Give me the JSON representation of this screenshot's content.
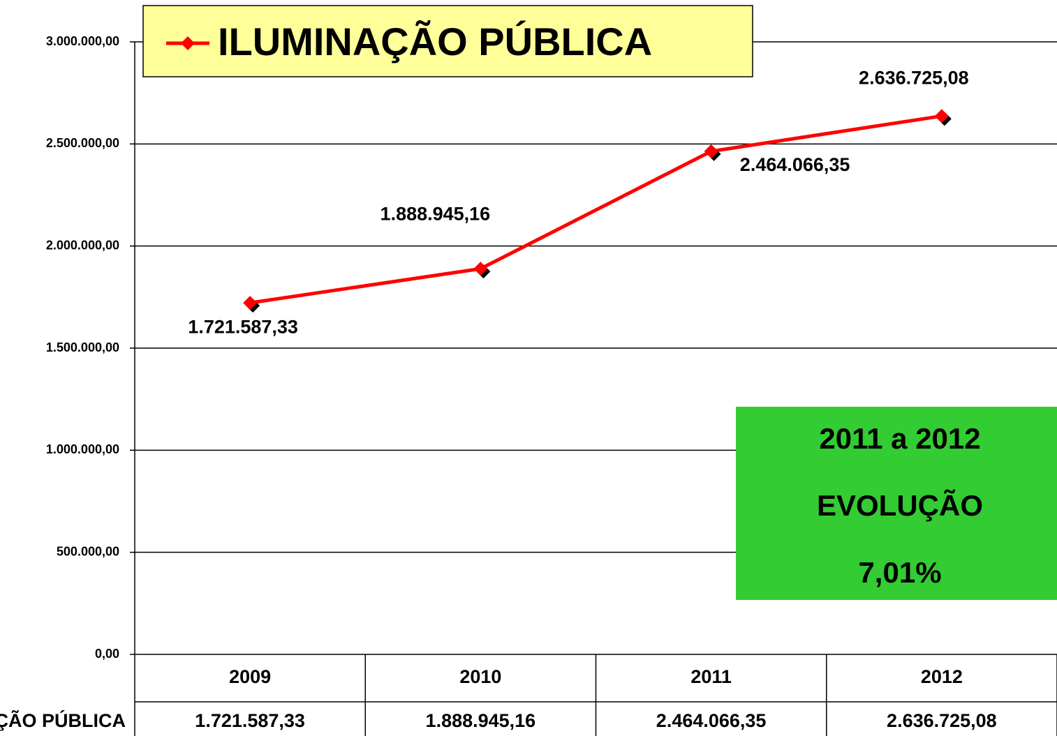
{
  "chart_data": {
    "type": "line",
    "categories": [
      "2009",
      "2010",
      "2011",
      "2012"
    ],
    "series": [
      {
        "name": "ILUMINAÇÃO PÚBLICA",
        "color": "#ff0000",
        "values": [
          1721587.33,
          1888945.16,
          2464066.35,
          2636725.08
        ],
        "value_labels": [
          "1.721.587,33",
          "1.888.945,16",
          "2.464.066,35",
          "2.636.725,08"
        ]
      }
    ],
    "ylim": [
      0,
      3000000
    ],
    "yticks": [
      {
        "value": 0,
        "label": "0,00"
      },
      {
        "value": 500000,
        "label": "500.000,00"
      },
      {
        "value": 1000000,
        "label": "1.000.000,00"
      },
      {
        "value": 1500000,
        "label": "1.500.000,00"
      },
      {
        "value": 2000000,
        "label": "2.000.000,00"
      },
      {
        "value": 2500000,
        "label": "2.500.000,00"
      },
      {
        "value": 3000000,
        "label": "3.000.000,00"
      }
    ],
    "grid": true,
    "legend": "top-left",
    "annotations": [
      "2011 a 2012",
      "EVOLUÇÃO",
      "7,01%"
    ],
    "annotation_color": "#33cc33",
    "legend_color": "#ffff99"
  }
}
